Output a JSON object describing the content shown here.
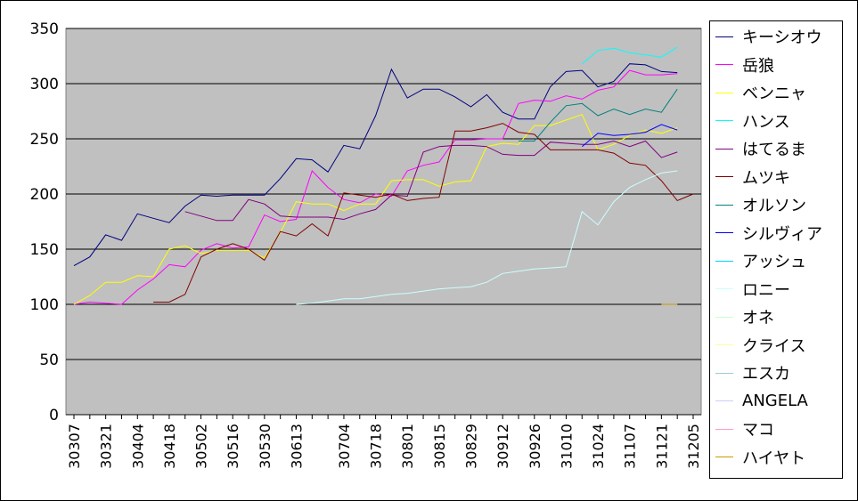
{
  "chart_data": {
    "type": "line",
    "title": "",
    "xlabel": "",
    "ylabel": "",
    "ylim": [
      0,
      350
    ],
    "yticks": [
      "0",
      "50",
      "100",
      "150",
      "200",
      "250",
      "300",
      "350"
    ],
    "grid": "horizontal",
    "legend_position": "right",
    "plot_background": "#c0c0c0",
    "x": [
      "30307",
      "30314",
      "30321",
      "30328",
      "30404",
      "30411",
      "30418",
      "30425",
      "30502",
      "30509",
      "30516",
      "30523",
      "30530",
      "30606",
      "30613",
      "30620",
      "30627",
      "30704",
      "30711",
      "30718",
      "30725",
      "30801",
      "30808",
      "30815",
      "30822",
      "30829",
      "30905",
      "30912",
      "30919",
      "30926",
      "31003",
      "31010",
      "31017",
      "31024",
      "31031",
      "31107",
      "31114",
      "31121",
      "31128",
      "31205"
    ],
    "x_tick_labels": [
      "30307",
      "30321",
      "30404",
      "30418",
      "30502",
      "30516",
      "30530",
      "30613",
      "30704",
      "30718",
      "30801",
      "30815",
      "30829",
      "30912",
      "30926",
      "31010",
      "31024",
      "31107",
      "31121",
      "31205"
    ],
    "series": [
      {
        "name": "キーシオウ",
        "color": "#000080",
        "values": [
          135,
          143,
          163,
          158,
          182,
          178,
          174,
          189,
          199,
          198,
          199,
          199,
          199,
          214,
          232,
          231,
          220,
          244,
          241,
          271,
          313,
          287,
          295,
          295,
          288,
          279,
          290,
          274,
          268,
          268,
          297,
          311,
          312,
          297,
          302,
          318,
          317,
          311,
          310,
          null
        ]
      },
      {
        "name": "岳狼",
        "color": "#ff00ff",
        "values": [
          100,
          102,
          101,
          100,
          113,
          123,
          136,
          134,
          149,
          155,
          151,
          152,
          181,
          175,
          177,
          221,
          206,
          195,
          192,
          200,
          198,
          221,
          226,
          229,
          249,
          249,
          250,
          250,
          282,
          285,
          284,
          289,
          286,
          294,
          297,
          312,
          308,
          308,
          309,
          null
        ]
      },
      {
        "name": "ベンニャ",
        "color": "#ffff00",
        "values": [
          100,
          108,
          120,
          120,
          126,
          125,
          150,
          153,
          146,
          149,
          149,
          149,
          142,
          165,
          193,
          191,
          191,
          185,
          191,
          191,
          212,
          213,
          213,
          207,
          211,
          212,
          243,
          246,
          245,
          262,
          262,
          267,
          272,
          240,
          245,
          253,
          258,
          255,
          260,
          null
        ]
      },
      {
        "name": "ハンス",
        "color": "#00ffff",
        "values": [
          null,
          null,
          null,
          null,
          null,
          null,
          null,
          null,
          null,
          null,
          null,
          null,
          null,
          null,
          null,
          null,
          null,
          null,
          null,
          null,
          null,
          null,
          null,
          null,
          null,
          null,
          null,
          null,
          null,
          null,
          null,
          null,
          318,
          330,
          332,
          328,
          326,
          324,
          333,
          null
        ]
      },
      {
        "name": "はてるま",
        "color": "#800080",
        "values": [
          null,
          null,
          null,
          null,
          null,
          null,
          null,
          184,
          180,
          176,
          176,
          195,
          191,
          180,
          179,
          179,
          179,
          177,
          182,
          186,
          199,
          198,
          238,
          243,
          244,
          244,
          243,
          236,
          235,
          235,
          247,
          246,
          245,
          245,
          248,
          243,
          248,
          233,
          238,
          null
        ]
      },
      {
        "name": "ムツキ",
        "color": "#800000",
        "values": [
          null,
          null,
          null,
          null,
          null,
          102,
          102,
          109,
          143,
          150,
          155,
          150,
          140,
          166,
          162,
          173,
          162,
          201,
          199,
          197,
          200,
          194,
          196,
          197,
          257,
          257,
          260,
          264,
          256,
          254,
          240,
          240,
          240,
          240,
          237,
          228,
          226,
          212,
          194,
          200
        ]
      },
      {
        "name": "オルソン",
        "color": "#008080",
        "values": [
          null,
          null,
          null,
          null,
          null,
          null,
          null,
          null,
          null,
          null,
          null,
          null,
          null,
          null,
          null,
          null,
          null,
          null,
          null,
          null,
          null,
          null,
          null,
          null,
          null,
          null,
          null,
          null,
          248,
          248,
          265,
          280,
          282,
          271,
          277,
          272,
          277,
          274,
          295,
          null
        ]
      },
      {
        "name": "シルヴィア",
        "color": "#0000ff",
        "values": [
          null,
          null,
          null,
          null,
          null,
          null,
          null,
          null,
          null,
          null,
          null,
          null,
          null,
          null,
          null,
          null,
          null,
          null,
          null,
          null,
          null,
          null,
          null,
          null,
          null,
          null,
          null,
          null,
          null,
          null,
          null,
          null,
          243,
          255,
          253,
          254,
          256,
          263,
          258,
          null
        ]
      },
      {
        "name": "アッシュ",
        "color": "#00ccff",
        "values": [
          null,
          null,
          null,
          null,
          null,
          null,
          null,
          null,
          null,
          null,
          null,
          null,
          null,
          null,
          null,
          null,
          null,
          null,
          null,
          null,
          null,
          null,
          null,
          null,
          null,
          null,
          null,
          null,
          null,
          null,
          null,
          null,
          null,
          null,
          null,
          null,
          null,
          null,
          null,
          null
        ]
      },
      {
        "name": "ロニー",
        "color": "#ccffff",
        "values": [
          null,
          null,
          null,
          null,
          null,
          null,
          null,
          null,
          null,
          null,
          null,
          null,
          null,
          null,
          100,
          101,
          103,
          105,
          105,
          107,
          109,
          110,
          112,
          114,
          115,
          116,
          120,
          128,
          130,
          132,
          133,
          134,
          184,
          172,
          193,
          206,
          213,
          219,
          221,
          null
        ]
      },
      {
        "name": "オネ",
        "color": "#ccffcc",
        "values": [
          null,
          null,
          null,
          null,
          null,
          null,
          null,
          null,
          null,
          null,
          null,
          null,
          null,
          null,
          null,
          null,
          null,
          null,
          null,
          null,
          null,
          null,
          null,
          null,
          null,
          null,
          null,
          null,
          null,
          null,
          null,
          null,
          null,
          null,
          null,
          null,
          null,
          null,
          null,
          null
        ]
      },
      {
        "name": "クライス",
        "color": "#ffff99",
        "values": [
          null,
          null,
          null,
          null,
          null,
          null,
          null,
          null,
          null,
          null,
          null,
          null,
          null,
          null,
          null,
          null,
          null,
          null,
          null,
          null,
          null,
          null,
          null,
          null,
          null,
          null,
          null,
          null,
          null,
          null,
          null,
          null,
          null,
          null,
          null,
          null,
          null,
          null,
          null,
          null
        ]
      },
      {
        "name": "エスカ",
        "color": "#99cccc",
        "values": [
          null,
          null,
          null,
          null,
          null,
          null,
          null,
          null,
          null,
          null,
          null,
          null,
          null,
          null,
          null,
          null,
          null,
          null,
          null,
          null,
          null,
          null,
          null,
          null,
          null,
          null,
          null,
          null,
          null,
          null,
          null,
          null,
          null,
          null,
          null,
          null,
          null,
          null,
          null,
          null
        ]
      },
      {
        "name": "ANGELA",
        "color": "#ccccff",
        "values": [
          null,
          null,
          null,
          null,
          null,
          null,
          null,
          null,
          null,
          null,
          null,
          null,
          null,
          null,
          null,
          null,
          null,
          null,
          null,
          null,
          null,
          null,
          null,
          null,
          null,
          null,
          null,
          null,
          null,
          null,
          null,
          null,
          null,
          null,
          null,
          null,
          null,
          null,
          null,
          null
        ]
      },
      {
        "name": "マコ",
        "color": "#ff99cc",
        "values": [
          null,
          null,
          null,
          null,
          null,
          null,
          null,
          null,
          null,
          null,
          null,
          null,
          null,
          null,
          null,
          null,
          null,
          null,
          null,
          null,
          null,
          null,
          null,
          null,
          null,
          null,
          null,
          null,
          null,
          null,
          null,
          null,
          null,
          null,
          null,
          null,
          null,
          null,
          null,
          null
        ]
      },
      {
        "name": "ハイヤト",
        "color": "#cc9900",
        "values": [
          null,
          null,
          null,
          null,
          null,
          null,
          null,
          null,
          null,
          null,
          null,
          null,
          null,
          null,
          null,
          null,
          null,
          null,
          null,
          null,
          null,
          null,
          null,
          null,
          null,
          null,
          null,
          null,
          null,
          null,
          null,
          null,
          null,
          null,
          null,
          null,
          null,
          100,
          100,
          null
        ]
      }
    ]
  }
}
